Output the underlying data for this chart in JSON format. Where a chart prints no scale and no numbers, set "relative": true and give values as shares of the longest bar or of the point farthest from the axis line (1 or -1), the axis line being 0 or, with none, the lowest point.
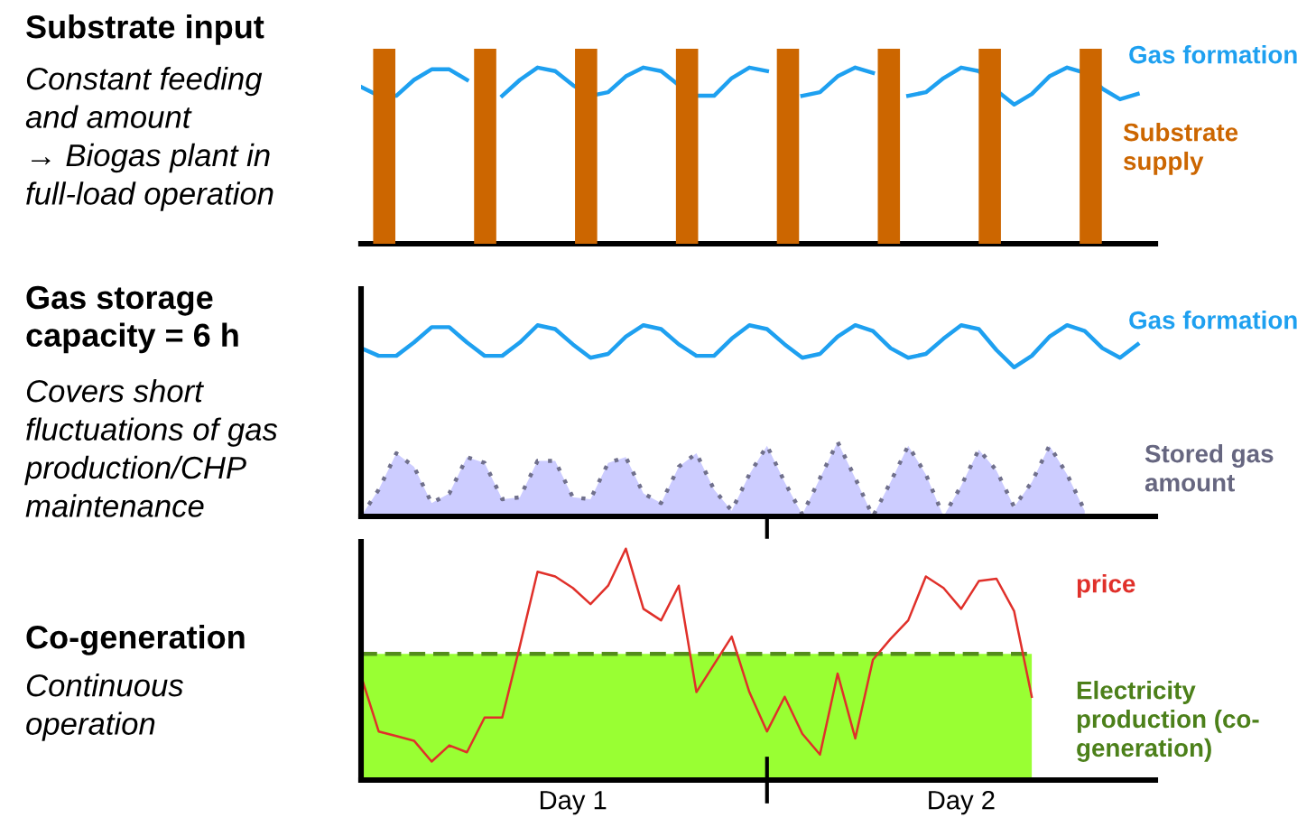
{
  "chart_data": [
    {
      "type": "bar",
      "relative": true,
      "title": "Substrate input",
      "subtitle": "Constant feeding\nand amount\n→ Biogas plant in\nfull-load operation",
      "categories": [
        null,
        null,
        null,
        null,
        null,
        null,
        null,
        null
      ],
      "series": [
        {
          "name": "Substrate\nsupply",
          "color": "#cc6600",
          "values": [
            1,
            1,
            1,
            1,
            1,
            1,
            1,
            1
          ]
        }
      ]
    },
    {
      "type": "line",
      "relative": true,
      "marker": "none",
      "categories": [
        null,
        null,
        null,
        null,
        null,
        null,
        null,
        null,
        null,
        null,
        null,
        null,
        null,
        null,
        null,
        null,
        null,
        null,
        null,
        null,
        null,
        null,
        null,
        null,
        null,
        null,
        null,
        null,
        null,
        null,
        null,
        null,
        null,
        null,
        null,
        null,
        null,
        null,
        null,
        null,
        null,
        null,
        null,
        null,
        null
      ],
      "series": [
        {
          "name": "Gas formation",
          "color": "#1ea0f0",
          "values": [
            0.89,
            0.84,
            0.84,
            0.93,
            0.99,
            0.99,
            0.93,
            null,
            0.84,
            0.93,
            1,
            0.98,
            0.9,
            0.84,
            0.86,
            0.95,
            1,
            0.98,
            0.9,
            0.84,
            0.84,
            0.94,
            1,
            0.98,
            null,
            0.84,
            0.86,
            0.95,
            1,
            0.97,
            null,
            0.84,
            0.86,
            0.94,
            1,
            0.98,
            0.87,
            0.79,
            0.85,
            0.95,
            1,
            0.97,
            0.88,
            0.82,
            0.85
          ]
        }
      ]
    },
    {
      "type": "line",
      "relative": true,
      "title": "Gas storage\ncapacity = 6 h",
      "subtitle": "Covers short\nfluctuations of gas\nproduction/CHP\nmaintenance",
      "marker": "none",
      "categories": [
        null,
        null,
        null,
        null,
        null,
        null,
        null,
        null,
        null,
        null,
        null,
        null,
        null,
        null,
        null,
        null,
        null,
        null,
        null,
        null,
        null,
        null,
        null,
        null,
        null,
        null,
        null,
        null,
        null,
        null,
        null,
        null,
        null,
        null,
        null,
        null,
        null,
        null,
        null,
        null,
        null,
        null,
        null,
        null,
        null
      ],
      "series": [
        {
          "name": "Gas formation",
          "type": "line",
          "color": "#1ea0f0",
          "values": [
            0.88,
            0.84,
            0.84,
            0.91,
            0.99,
            0.99,
            0.91,
            0.84,
            0.84,
            0.91,
            1,
            0.98,
            0.9,
            0.83,
            0.85,
            0.94,
            1,
            0.98,
            0.9,
            0.84,
            0.84,
            0.93,
            1,
            0.98,
            0.9,
            0.83,
            0.85,
            0.94,
            1,
            0.97,
            0.88,
            0.83,
            0.85,
            0.93,
            1,
            0.98,
            0.87,
            0.78,
            0.84,
            0.94,
            1,
            0.97,
            0.88,
            0.83,
            0.9
          ]
        },
        {
          "name": "Stored gas\namount",
          "type": "area",
          "color": "#ccccff",
          "line_style": "dotted",
          "values": [
            0,
            0.14,
            0.33,
            0.26,
            0.07,
            0.12,
            0.31,
            0.28,
            0.09,
            0.1,
            0.29,
            0.29,
            0.1,
            0.09,
            0.28,
            0.31,
            0.12,
            0.07,
            0.26,
            0.33,
            0.14,
            0.03,
            0.22,
            0.37,
            0.18,
            0.01,
            0.2,
            0.39,
            0.2,
            0,
            0.18,
            0.37,
            0.22,
            0,
            0.16,
            0.35,
            0.24,
            0.05,
            0.18,
            0.37,
            0.22,
            0.03,
            null,
            null,
            null
          ]
        }
      ]
    },
    {
      "type": "line",
      "relative": true,
      "title": "Co-generation",
      "subtitle": "Continuous\noperation",
      "marker": "none",
      "categories": [
        null,
        null,
        null,
        null,
        null,
        null,
        null,
        null,
        null,
        null,
        null,
        null,
        "Day 1",
        null,
        null,
        null,
        null,
        null,
        null,
        null,
        null,
        null,
        null,
        null,
        null,
        null,
        null,
        null,
        null,
        null,
        null,
        null,
        null,
        null,
        "Day 2",
        null,
        null,
        null,
        null,
        null,
        null,
        null,
        null,
        null,
        null
      ],
      "series": [
        {
          "name": "Electricity\nproduction (co-\ngeneration)",
          "type": "area",
          "color": "#99ff33",
          "line_style": "dashed",
          "values": [
            0.545,
            0.545,
            0.545,
            0.545,
            0.545,
            0.545,
            0.545,
            0.545,
            0.545,
            0.545,
            0.545,
            0.545,
            0.545,
            0.545,
            0.545,
            0.545,
            0.545,
            0.545,
            0.545,
            0.545,
            0.545,
            0.545,
            0.545,
            0.545,
            0.545,
            0.545,
            0.545,
            0.545,
            0.545,
            0.545,
            0.545,
            0.545,
            0.545,
            0.545,
            0.545,
            0.545,
            0.545,
            0.545,
            0.545,
            null,
            null,
            null,
            null,
            null,
            null
          ]
        },
        {
          "name": "price",
          "type": "line",
          "color": "#e0302a",
          "values": [
            0.45,
            0.21,
            0.19,
            0.17,
            0.08,
            0.15,
            0.12,
            0.27,
            0.27,
            0.58,
            0.9,
            0.88,
            0.83,
            0.76,
            0.84,
            1,
            0.74,
            0.69,
            0.84,
            0.38,
            0.5,
            0.62,
            0.38,
            0.21,
            0.36,
            0.2,
            0.11,
            0.46,
            0.18,
            0.52,
            0.61,
            0.69,
            0.88,
            0.83,
            0.74,
            0.86,
            0.87,
            0.73,
            0.36,
            null,
            null,
            null,
            null,
            null,
            null
          ]
        }
      ]
    }
  ]
}
